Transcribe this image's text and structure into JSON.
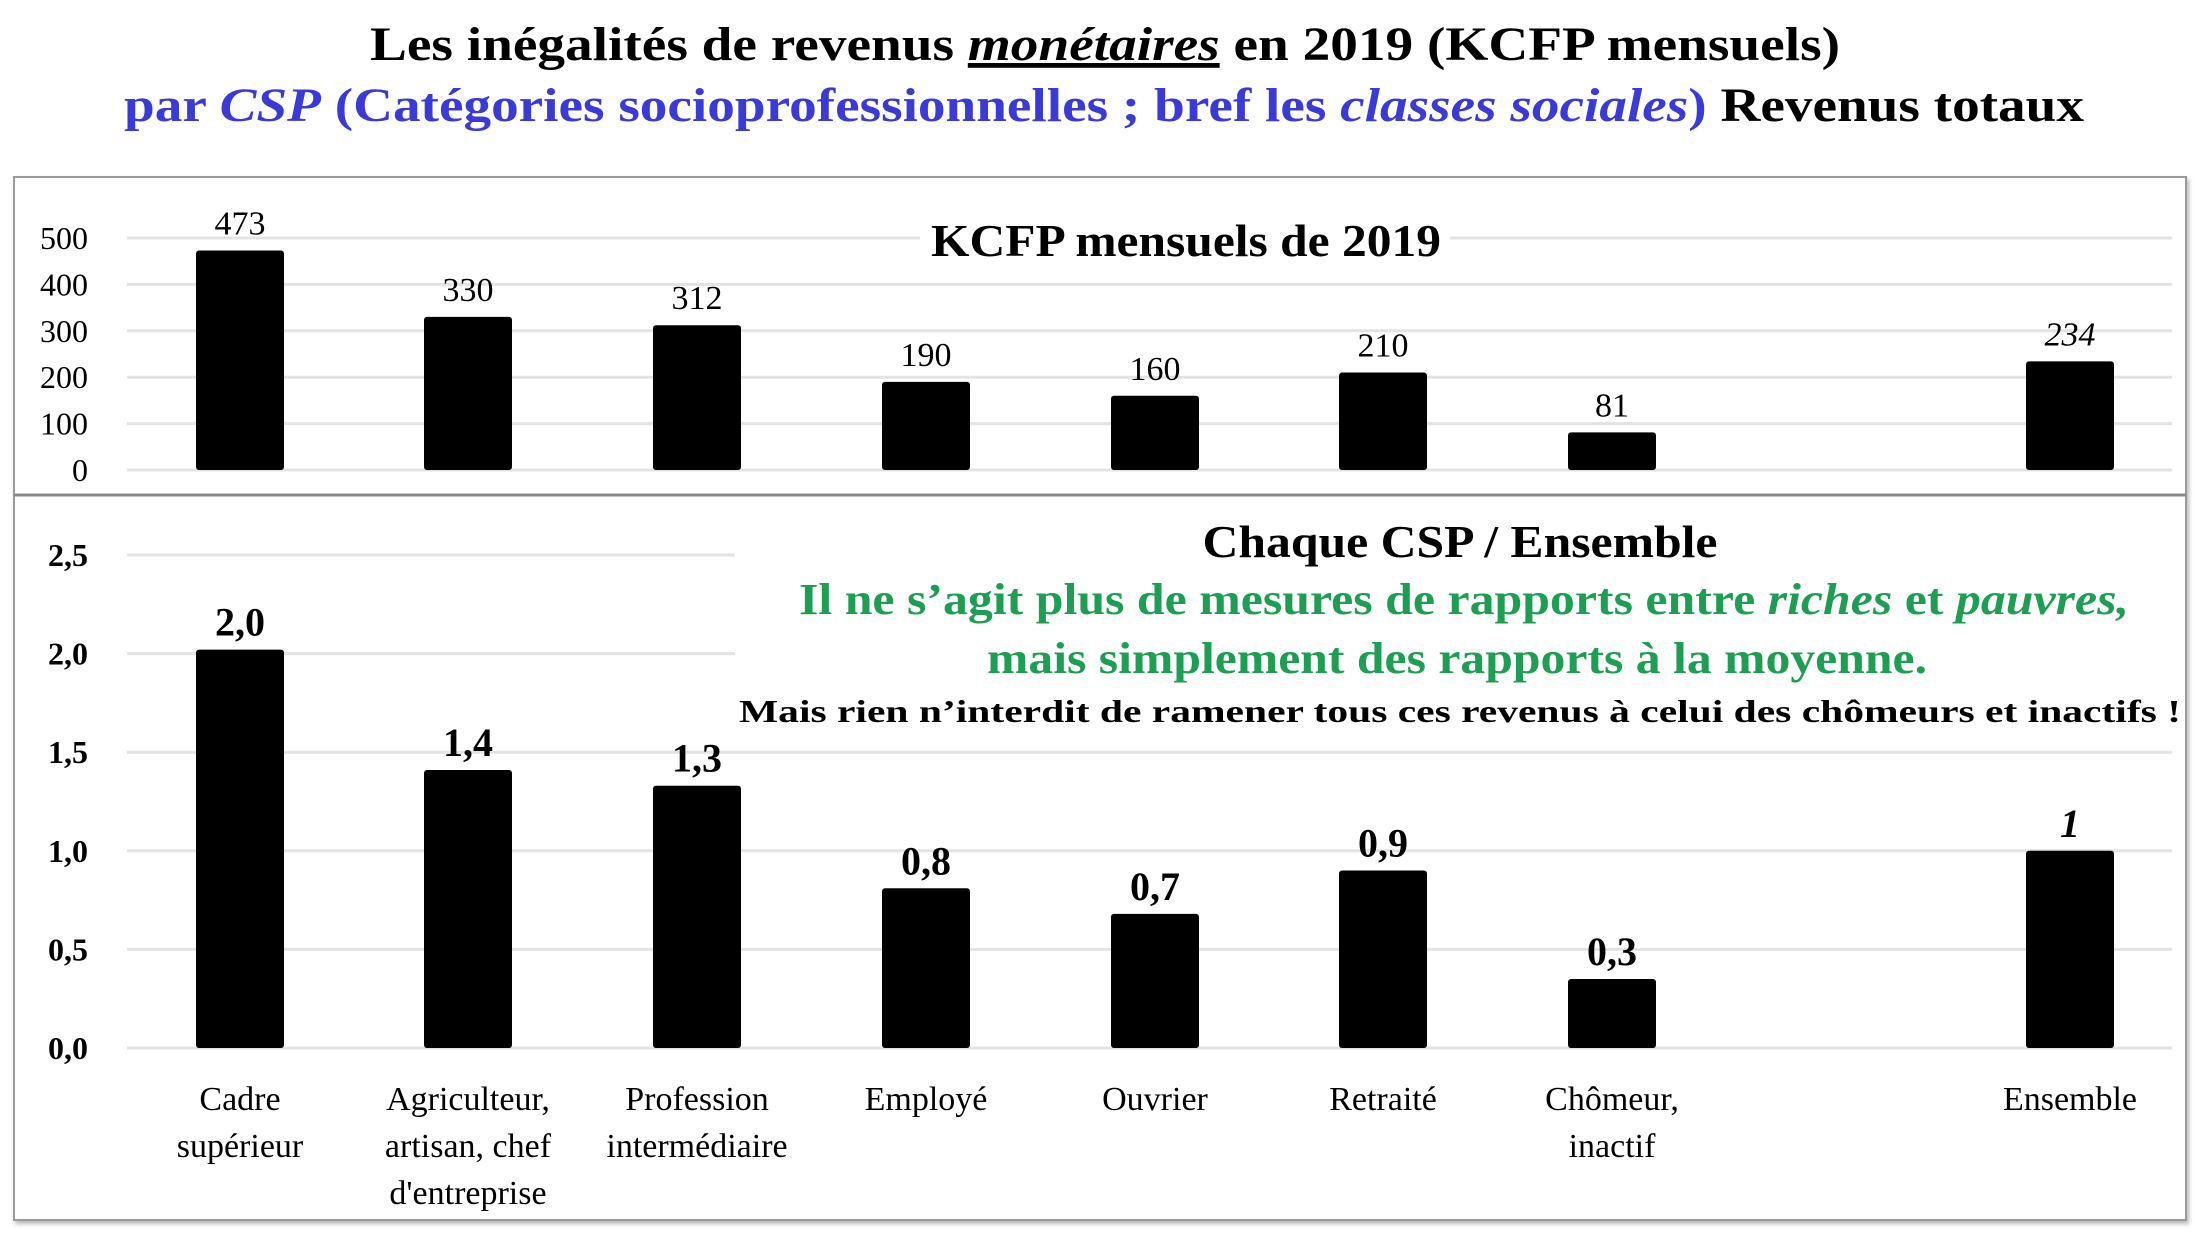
{
  "title": {
    "line1": {
      "a": "Les inégalités de revenus ",
      "b": "monétaires",
      "c": " en 2019 (KCFP mensuels)"
    },
    "line2": {
      "a": "par ",
      "b": "CSP",
      "c": " (Catégories socioprofessionnelles ; bref les ",
      "d": "classes sociales",
      "e": ")",
      "f": " Revenus totaux"
    }
  },
  "colors": {
    "blue": "#3a3ad6",
    "green": "#1e9e52",
    "bar": "#000000",
    "grid": "#e3e3e3"
  },
  "chart_data": [
    {
      "type": "bar",
      "title": "KCFP mensuels de 2019",
      "categories": [
        "Cadre supérieur",
        "Agriculteur, artisan, chef d'entreprise",
        "Profession intermédiaire",
        "Employé",
        "Ouvrier",
        "Retraité",
        "Chômeur, inactif",
        "Ensemble"
      ],
      "values": [
        473,
        330,
        312,
        190,
        160,
        210,
        81,
        234
      ],
      "value_labels": [
        "473",
        "330",
        "312",
        "190",
        "160",
        "210",
        "81",
        "234"
      ],
      "ylim": [
        0,
        500
      ],
      "yticks": [
        0,
        100,
        200,
        300,
        400,
        500
      ],
      "ytick_labels": [
        "0",
        "100",
        "200",
        "300",
        "400",
        "500"
      ],
      "grid": true
    },
    {
      "type": "bar",
      "title": "Chaque CSP / Ensemble",
      "subtitle": {
        "g1a": "Il ne s’agit plus de mesures de rapports entre ",
        "g1b": "riches",
        "g1c": " et ",
        "g1d": "pauvres,",
        "g2": "mais simplement des rapports à la moyenne.",
        "note": "Mais rien n’interdit de ramener tous ces revenus à celui des chômeurs et inactifs !"
      },
      "categories": [
        "Cadre supérieur",
        "Agriculteur, artisan, chef d'entreprise",
        "Profession intermédiaire",
        "Employé",
        "Ouvrier",
        "Retraité",
        "Chômeur, inactif",
        "Ensemble"
      ],
      "category_lines": [
        [
          "Cadre",
          "supérieur"
        ],
        [
          "Agriculteur,",
          "artisan, chef",
          "d'entreprise"
        ],
        [
          "Profession",
          "intermédiaire"
        ],
        [
          "Employé"
        ],
        [
          "Ouvrier"
        ],
        [
          "Retraité"
        ],
        [
          "Chômeur,",
          "inactif"
        ],
        [
          "Ensemble"
        ]
      ],
      "values": [
        2.02,
        1.41,
        1.33,
        0.81,
        0.68,
        0.9,
        0.35,
        1.0
      ],
      "value_labels": [
        "2,0",
        "1,4",
        "1,3",
        "0,8",
        "0,7",
        "0,9",
        "0,3",
        "1"
      ],
      "ylim": [
        0,
        2.5
      ],
      "yticks": [
        0,
        0.5,
        1,
        1.5,
        2,
        2.5
      ],
      "ytick_labels": [
        "0,0",
        "0,5",
        "1,0",
        "1,5",
        "2,0",
        "2,5"
      ],
      "grid": true
    }
  ]
}
